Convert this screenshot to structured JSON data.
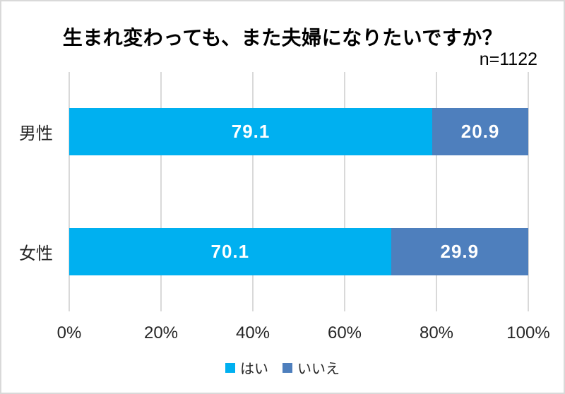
{
  "title": "生まれ変わっても、また夫婦になりたいですか？",
  "sample_size_label": "n=1122",
  "chart_data": {
    "type": "bar",
    "orientation": "horizontal",
    "stacked": true,
    "title": "生まれ変わっても、また夫婦になりたいですか？",
    "annotation": "n=1122",
    "categories": [
      "男性",
      "女性"
    ],
    "series": [
      {
        "name": "はい",
        "color": "#00B0F0",
        "values": [
          79.1,
          70.1
        ]
      },
      {
        "name": "いいえ",
        "color": "#4E7FBD",
        "values": [
          20.9,
          29.9
        ]
      }
    ],
    "x_ticks": [
      "0%",
      "20%",
      "40%",
      "60%",
      "80%",
      "100%"
    ],
    "xlim": [
      0,
      100
    ],
    "grid": true,
    "legend_position": "bottom"
  },
  "colors": {
    "yes_segment": "#00B0F0",
    "no_segment": "#4E7FBD",
    "gridline": "#D9D9D9",
    "frame_border": "#D9D9D9",
    "value_text": "#FFFFFF",
    "label_text": "#262626"
  }
}
